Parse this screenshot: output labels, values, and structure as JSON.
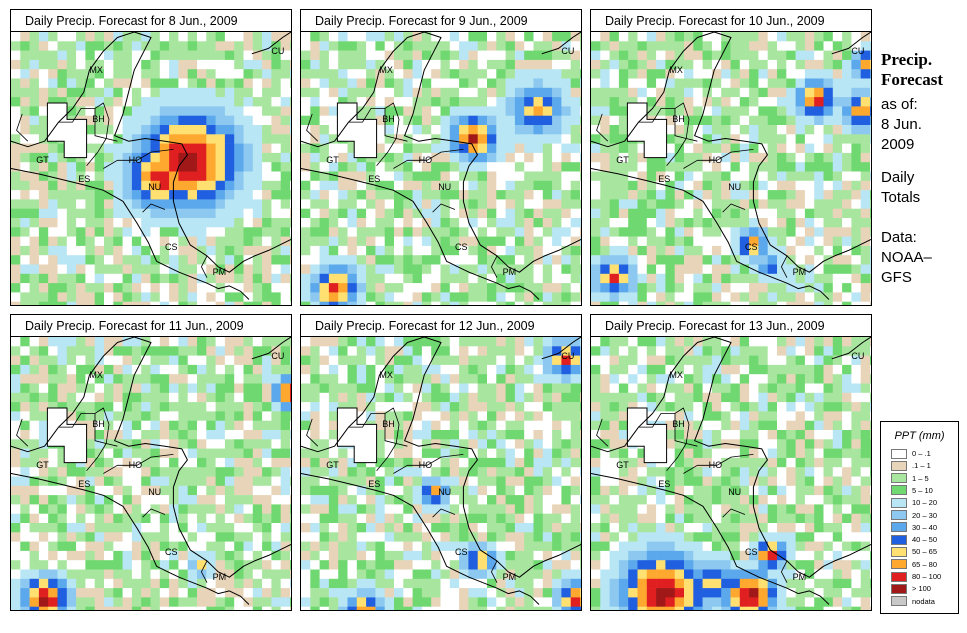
{
  "panels": [
    {
      "title": "Daily Precip. Forecast for  8 Jun., 2009",
      "hotspots": [
        [
          0.62,
          0.46,
          0.26,
          1.0
        ],
        [
          0.52,
          0.52,
          0.18,
          0.9
        ],
        [
          0.72,
          0.4,
          0.12,
          0.7
        ]
      ]
    },
    {
      "title": "Daily Precip. Forecast for  9 Jun., 2009",
      "hotspots": [
        [
          0.6,
          0.38,
          0.12,
          0.9
        ],
        [
          0.82,
          0.28,
          0.14,
          0.7
        ],
        [
          0.12,
          0.92,
          0.12,
          0.9
        ]
      ]
    },
    {
      "title": "Daily Precip. Forecast for  10 Jun., 2009",
      "hotspots": [
        [
          0.78,
          0.24,
          0.1,
          0.9
        ],
        [
          0.94,
          0.28,
          0.1,
          0.8
        ],
        [
          0.96,
          0.12,
          0.08,
          0.8
        ],
        [
          0.56,
          0.76,
          0.08,
          0.8
        ],
        [
          0.08,
          0.88,
          0.1,
          0.8
        ],
        [
          0.62,
          0.84,
          0.06,
          0.6
        ]
      ]
    },
    {
      "title": "Daily Precip. Forecast for  11 Jun., 2009",
      "hotspots": [
        [
          0.97,
          0.2,
          0.08,
          1.0
        ],
        [
          0.12,
          0.94,
          0.12,
          1.0
        ],
        [
          0.66,
          0.82,
          0.05,
          0.6
        ]
      ]
    },
    {
      "title": "Daily Precip. Forecast for  12 Jun., 2009",
      "hotspots": [
        [
          0.46,
          0.56,
          0.07,
          0.8
        ],
        [
          0.92,
          0.08,
          0.1,
          0.8
        ],
        [
          0.62,
          0.8,
          0.08,
          0.8
        ],
        [
          0.96,
          0.94,
          0.1,
          0.9
        ],
        [
          0.22,
          0.98,
          0.1,
          0.8
        ]
      ]
    },
    {
      "title": "Daily Precip. Forecast for  13 Jun., 2009",
      "hotspots": [
        [
          0.25,
          0.92,
          0.22,
          1.0
        ],
        [
          0.55,
          0.93,
          0.14,
          1.0
        ],
        [
          0.62,
          0.78,
          0.08,
          0.9
        ],
        [
          0.42,
          0.88,
          0.12,
          0.7
        ]
      ]
    }
  ],
  "regions": {
    "mx": "MX",
    "cu": "CU",
    "bh": "BH",
    "gt": "GT",
    "ho": "HO",
    "es": "ES",
    "nu": "NU",
    "cs": "CS",
    "pm": "PM"
  },
  "side": {
    "line1": "Precip.",
    "line2": "Forecast",
    "line3": "as of:",
    "line4": "8 Jun.",
    "line5": "2009",
    "line6": "Daily",
    "line7": "Totals",
    "line8": "Data:",
    "line9": "NOAA–",
    "line10": "GFS"
  },
  "legend": {
    "title": "PPT (mm)",
    "items": [
      {
        "label": "0 – .1",
        "color": "#ffffff"
      },
      {
        "label": ".1 – 1",
        "color": "#e8d4b8"
      },
      {
        "label": "1 – 5",
        "color": "#a8e6a0"
      },
      {
        "label": "5 – 10",
        "color": "#70d870"
      },
      {
        "label": "10 – 20",
        "color": "#b8e6f4"
      },
      {
        "label": "20 – 30",
        "color": "#8cc8f0"
      },
      {
        "label": "30 – 40",
        "color": "#5ca8ec"
      },
      {
        "label": "40 – 50",
        "color": "#2060e0"
      },
      {
        "label": "50 – 65",
        "color": "#ffe070"
      },
      {
        "label": "65 – 80",
        "color": "#ffa830"
      },
      {
        "label": "80 – 100",
        "color": "#e02020"
      },
      {
        "label": "> 100",
        "color": "#a01818"
      },
      {
        "label": "nodata",
        "color": "#c8c8c8"
      }
    ]
  }
}
